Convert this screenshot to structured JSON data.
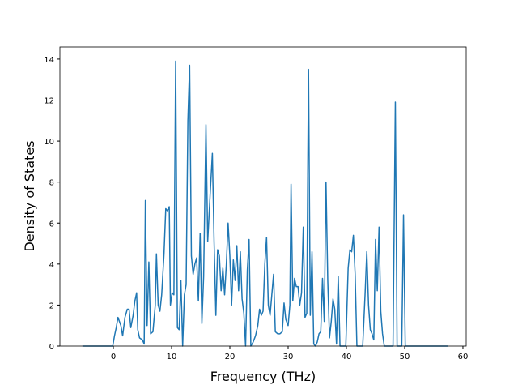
{
  "chart_data": {
    "type": "line",
    "x_label": "Frequency (THz)",
    "y_label": "Density of States",
    "x": [
      -5.3,
      -0.1,
      0.2,
      0.5,
      0.8,
      1.3,
      1.6,
      2.0,
      2.4,
      2.7,
      3.0,
      3.4,
      3.7,
      4.0,
      4.2,
      4.5,
      5.0,
      5.3,
      5.5,
      5.8,
      6.1,
      6.4,
      6.8,
      7.2,
      7.4,
      7.7,
      8.0,
      8.3,
      8.7,
      9.0,
      9.3,
      9.6,
      9.8,
      10.1,
      10.4,
      10.7,
      11.0,
      11.3,
      11.6,
      11.9,
      12.2,
      12.5,
      12.8,
      13.1,
      13.4,
      13.7,
      14.0,
      14.3,
      14.6,
      14.9,
      15.2,
      15.5,
      15.9,
      16.2,
      16.6,
      17.0,
      17.3,
      17.6,
      17.9,
      18.2,
      18.5,
      18.8,
      19.1,
      19.4,
      19.7,
      20.0,
      20.3,
      20.6,
      20.9,
      21.2,
      21.5,
      21.8,
      22.1,
      22.4,
      22.7,
      23.0,
      23.3,
      23.6,
      24.0,
      24.4,
      24.8,
      25.1,
      25.4,
      25.7,
      26.0,
      26.3,
      26.6,
      26.9,
      27.2,
      27.5,
      27.8,
      28.2,
      28.6,
      29.0,
      29.3,
      29.6,
      30.0,
      30.3,
      30.5,
      30.8,
      31.1,
      31.4,
      31.7,
      32.0,
      32.3,
      32.6,
      32.9,
      33.2,
      33.5,
      33.8,
      34.1,
      34.4,
      34.7,
      35.0,
      35.3,
      35.6,
      35.9,
      36.2,
      36.5,
      36.8,
      37.1,
      37.4,
      37.7,
      38.0,
      38.3,
      38.6,
      38.9,
      39.9,
      40.3,
      40.6,
      40.9,
      41.2,
      41.5,
      41.8,
      42.8,
      43.2,
      43.5,
      43.8,
      44.1,
      44.4,
      44.7,
      45.0,
      45.3,
      45.6,
      45.9,
      46.2,
      46.5,
      48.0,
      48.4,
      48.7,
      49.5,
      49.8,
      50.1,
      57.5
    ],
    "series": [
      {
        "color": "#1f77b4",
        "values": [
          0,
          0,
          0.5,
          0.9,
          1.4,
          1.0,
          0.5,
          1.4,
          1.8,
          1.8,
          0.9,
          1.5,
          2.2,
          2.6,
          0.8,
          0.4,
          0.3,
          0.1,
          7.1,
          1.0,
          4.1,
          0.6,
          0.7,
          2.0,
          4.5,
          2.0,
          1.7,
          2.5,
          4.5,
          6.7,
          6.6,
          6.8,
          2.0,
          2.6,
          2.5,
          13.9,
          0.9,
          0.8,
          3.2,
          0,
          2.5,
          3.0,
          11.0,
          13.7,
          4.4,
          3.5,
          4.0,
          4.3,
          2.2,
          5.5,
          1.1,
          3.4,
          10.8,
          5.1,
          7.3,
          9.4,
          5.0,
          1.5,
          4.7,
          4.4,
          2.7,
          3.8,
          2.5,
          4.0,
          6.0,
          4.4,
          2.0,
          4.2,
          3.2,
          4.9,
          2.7,
          4.6,
          2.3,
          1.6,
          0,
          3.7,
          5.2,
          0,
          0.2,
          0.5,
          1.0,
          1.8,
          1.5,
          1.7,
          4.0,
          5.3,
          2.0,
          1.5,
          2.5,
          3.5,
          0.7,
          0.6,
          0.6,
          0.7,
          2.1,
          1.3,
          1.0,
          2.0,
          7.9,
          2.2,
          3.3,
          2.9,
          2.9,
          2.0,
          2.6,
          5.8,
          1.4,
          1.6,
          13.5,
          1.5,
          4.6,
          0.1,
          0,
          0.2,
          0.6,
          0.7,
          3.3,
          1.2,
          8.0,
          3.2,
          0.4,
          1.2,
          2.3,
          1.8,
          0.1,
          3.4,
          0,
          0,
          3.8,
          4.7,
          4.6,
          5.4,
          3.5,
          0,
          0,
          2.5,
          4.6,
          2.0,
          0.8,
          0.6,
          0.3,
          5.2,
          2.7,
          5.8,
          1.7,
          0.6,
          0,
          0,
          11.9,
          0,
          0,
          6.4,
          0,
          0
        ]
      }
    ],
    "xlim": [
      -9.17,
      60.56
    ],
    "ylim": [
      0,
      14.59
    ],
    "xticks": [
      0,
      10,
      20,
      30,
      40,
      50,
      60
    ],
    "yticks": [
      0,
      2,
      4,
      6,
      8,
      10,
      12,
      14
    ]
  }
}
